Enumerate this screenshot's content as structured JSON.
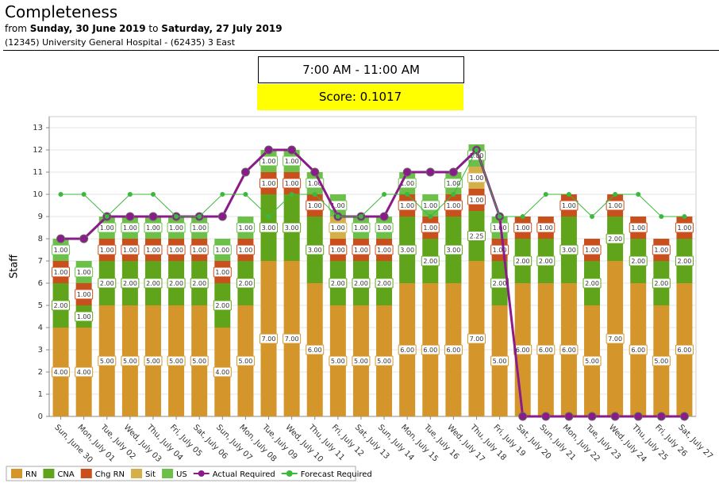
{
  "header": {
    "title": "Completeness",
    "from": "from",
    "start": "Sunday, 30 June 2019",
    "to": "to",
    "end": "Saturday, 27 July 2019",
    "location": "(12345) University General Hospital - (62435) 3 East"
  },
  "shift": "7:00 AM - 11:00 AM",
  "score": "Score: 0.1017",
  "chart_data": {
    "type": "stacked-bar-line",
    "y_label": "Staff",
    "grid": true,
    "legend": "bottom-left",
    "categories": [
      "Sun, June 30",
      "Mon, July 01",
      "Tue, July 02",
      "Wed, July 03",
      "Thu, July 04",
      "Fri, July 05",
      "Sat, July 06",
      "Sun, July 07",
      "Mon, July 08",
      "Tue, July 09",
      "Wed, July 10",
      "Thu, July 11",
      "Fri, July 12",
      "Sat, July 13",
      "Sun, July 14",
      "Mon, July 15",
      "Tue, July 16",
      "Wed, July 17",
      "Thu, July 18",
      "Fri, July 19",
      "Sat, July 20",
      "Sun, July 21",
      "Mon, July 22",
      "Tue, July 23",
      "Wed, July 24",
      "Thu, July 25",
      "Fri, July 26",
      "Sat, July 27"
    ],
    "ylim": [
      0,
      13.5
    ],
    "yticks": [
      0,
      1,
      2,
      3,
      4,
      5,
      6,
      7,
      8,
      9,
      10,
      11,
      12,
      13
    ],
    "series": [
      {
        "name": "RN",
        "kind": "bar",
        "color": "#d4962a",
        "values": [
          4,
          4,
          5,
          5,
          5,
          5,
          5,
          4,
          5,
          7,
          7,
          6,
          5,
          5,
          5,
          6,
          6,
          6,
          7,
          5,
          6,
          6,
          6,
          5,
          7,
          6,
          5,
          6
        ],
        "value_labels": [
          "4.00",
          "4.00",
          "5.00",
          "5.00",
          "5.00",
          "5.00",
          "5.00",
          "4.00",
          "5.00",
          "7.00",
          "7.00",
          "6.00",
          "5.00",
          "5.00",
          "5.00",
          "6.00",
          "6.00",
          "6.00",
          "7.00",
          "5.00",
          "6.00",
          "6.00",
          "6.00",
          "5.00",
          "7.00",
          "6.00",
          "5.00",
          "6.00"
        ]
      },
      {
        "name": "CNA",
        "kind": "bar",
        "color": "#5fa41a",
        "values": [
          2,
          1,
          2,
          2,
          2,
          2,
          2,
          2,
          2,
          3,
          3,
          3,
          2,
          2,
          2,
          3,
          2,
          3,
          2.25,
          2,
          2,
          2,
          3,
          2,
          2,
          2,
          2,
          2
        ],
        "value_labels": [
          "2.00",
          "1.00",
          "2.00",
          "2.00",
          "2.00",
          "2.00",
          "2.00",
          "2.00",
          "2.00",
          "3.00",
          "3.00",
          "3.00",
          "2.00",
          "2.00",
          "2.00",
          "3.00",
          "2.00",
          "3.00",
          "2.25",
          "2.00",
          "2.00",
          "2.00",
          "3.00",
          "2.00",
          "2.00",
          "2.00",
          "2.00",
          "2.00"
        ]
      },
      {
        "name": "Chg RN",
        "kind": "bar",
        "color": "#c9501c",
        "values": [
          1,
          1,
          1,
          1,
          1,
          1,
          1,
          1,
          1,
          1,
          1,
          1,
          1,
          1,
          1,
          1,
          1,
          1,
          1,
          1,
          1,
          1,
          1,
          1,
          1,
          1,
          1,
          1
        ],
        "value_labels": [
          "1.00",
          "1.00",
          "1.00",
          "1.00",
          "1.00",
          "1.00",
          "1.00",
          "1.00",
          "1.00",
          "1.00",
          "1.00",
          "1.00",
          "1.00",
          "1.00",
          "1.00",
          "1.00",
          "1.00",
          "1.00",
          "1.00",
          "1.00",
          "1.00",
          "1.00",
          "1.00",
          "1.00",
          "1.00",
          "1.00",
          "1.00",
          "1.00"
        ]
      },
      {
        "name": "Sit",
        "kind": "bar",
        "color": "#d4b04a",
        "values": [
          0,
          0,
          0,
          0,
          0,
          0,
          0,
          0,
          0,
          0,
          0,
          0,
          1,
          0,
          0,
          0,
          0,
          0,
          1,
          0,
          0,
          0,
          0,
          0,
          0,
          0,
          0,
          0
        ],
        "value_labels": [
          null,
          null,
          null,
          null,
          null,
          null,
          null,
          null,
          null,
          null,
          null,
          null,
          "1.00",
          null,
          null,
          null,
          null,
          null,
          "1.00",
          null,
          null,
          null,
          null,
          null,
          null,
          null,
          null,
          null
        ]
      },
      {
        "name": "US",
        "kind": "bar",
        "color": "#6cc04a",
        "values": [
          1,
          1,
          1,
          1,
          1,
          1,
          1,
          1,
          1,
          1,
          1,
          1,
          1,
          1,
          1,
          1,
          1,
          1,
          1,
          1,
          0,
          0,
          0,
          0,
          0,
          0,
          0,
          0
        ],
        "value_labels": [
          "1.00",
          "1.00",
          "1.00",
          "1.00",
          "1.00",
          "1.00",
          "1.00",
          "1.00",
          "1.00",
          "1.00",
          "1.00",
          "1.00",
          "1.00",
          "1.00",
          "1.00",
          "1.00",
          "1.00",
          "1.00",
          "1.00",
          "1.00",
          null,
          null,
          null,
          null,
          null,
          null,
          null,
          null
        ]
      },
      {
        "name": "Actual Required",
        "kind": "line",
        "color": "#8b1a8b",
        "values": [
          8,
          8,
          9,
          9,
          9,
          9,
          9,
          9,
          11,
          12,
          12,
          11,
          9,
          9,
          9,
          11,
          11,
          11,
          12,
          9,
          0,
          0,
          0,
          0,
          0,
          0,
          0,
          0
        ]
      },
      {
        "name": "Forecast Required",
        "kind": "line",
        "color": "#3cb83c",
        "values": [
          10,
          10,
          9,
          10,
          10,
          9,
          9,
          10,
          10,
          9,
          10,
          10,
          9,
          9,
          10,
          10,
          9,
          10,
          12,
          9,
          9,
          10,
          10,
          9,
          10,
          10,
          9,
          9
        ]
      }
    ]
  }
}
